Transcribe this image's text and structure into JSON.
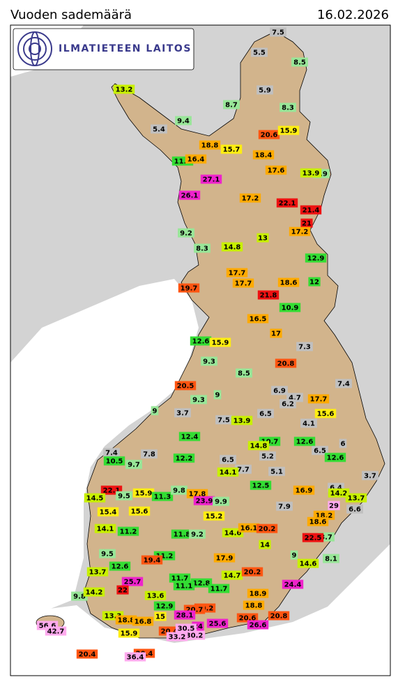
{
  "header": {
    "title": "Vuoden sademäärä",
    "date": "16.02.2026"
  },
  "logo": {
    "text": "ILMATIETEEN LAITOS"
  },
  "stations": [
    {
      "value": 7.5,
      "color": "#c0c0c0"
    },
    {
      "value": 5.5,
      "color": "#c0c0c0"
    },
    {
      "value": 8.5,
      "color": "#98e698"
    },
    {
      "value": 13.2,
      "color": "#c8f000"
    },
    {
      "value": 5.9,
      "color": "#c0c0c0"
    },
    {
      "value": 8.7,
      "color": "#98e698"
    },
    {
      "value": 8.3,
      "color": "#98e698"
    },
    {
      "value": 9.4,
      "color": "#98e698"
    },
    {
      "value": 5.4,
      "color": "#c0c0c0"
    },
    {
      "value": 20.6,
      "color": "#ff5511"
    },
    {
      "value": 15.9,
      "color": "#ffee11"
    },
    {
      "value": 18.8,
      "color": "#ffaa00"
    },
    {
      "value": 15.7,
      "color": "#ffee11"
    },
    {
      "value": 18.4,
      "color": "#ffaa00"
    },
    {
      "value": 11.6,
      "color": "#33dd33"
    },
    {
      "value": 16.4,
      "color": "#ffaa00"
    },
    {
      "value": 17.6,
      "color": "#ffaa00"
    },
    {
      "value": 9.9,
      "color": "#98e698"
    },
    {
      "value": 13.9,
      "color": "#c8f000"
    },
    {
      "value": 27.1,
      "color": "#ee22cc"
    },
    {
      "value": 26.1,
      "color": "#ee22cc"
    },
    {
      "value": 17.2,
      "color": "#ffaa00"
    },
    {
      "value": 22.1,
      "color": "#ee1111"
    },
    {
      "value": 21.4,
      "color": "#ee1111"
    },
    {
      "value": 21,
      "color": "#ee1111"
    },
    {
      "value": 17.2,
      "color": "#ffaa00"
    },
    {
      "value": 9.2,
      "color": "#98e698"
    },
    {
      "value": 8.3,
      "color": "#98e698"
    },
    {
      "value": 14.8,
      "color": "#c8f000"
    },
    {
      "value": 13,
      "color": "#c8f000"
    },
    {
      "value": 12.9,
      "color": "#33dd33"
    },
    {
      "value": 17.7,
      "color": "#ffaa00"
    },
    {
      "value": 17.7,
      "color": "#ffaa00"
    },
    {
      "value": 19.7,
      "color": "#ff5511"
    },
    {
      "value": 18.6,
      "color": "#ffaa00"
    },
    {
      "value": 12,
      "color": "#33dd33"
    },
    {
      "value": 21.8,
      "color": "#ee1111"
    },
    {
      "value": 10.9,
      "color": "#33dd33"
    },
    {
      "value": 16.5,
      "color": "#ffaa00"
    },
    {
      "value": 17,
      "color": "#ffaa00"
    },
    {
      "value": 12.6,
      "color": "#33dd33"
    },
    {
      "value": 15.9,
      "color": "#ffee11"
    },
    {
      "value": 7.3,
      "color": "#c0c0c0"
    },
    {
      "value": 9.3,
      "color": "#98e698"
    },
    {
      "value": 20.8,
      "color": "#ff5511"
    },
    {
      "value": 8.5,
      "color": "#98e698"
    },
    {
      "value": 7.4,
      "color": "#c0c0c0"
    },
    {
      "value": 20.5,
      "color": "#ff5511"
    },
    {
      "value": 6.9,
      "color": "#c0c0c0"
    },
    {
      "value": 4.7,
      "color": "#c0c0c0"
    },
    {
      "value": 6.2,
      "color": "#c0c0c0"
    },
    {
      "value": 9,
      "color": "#98e698"
    },
    {
      "value": 9.3,
      "color": "#98e698"
    },
    {
      "value": 17.7,
      "color": "#ffaa00"
    },
    {
      "value": 9,
      "color": "#98e698"
    },
    {
      "value": 3.7,
      "color": "#c0c0c0"
    },
    {
      "value": 6.5,
      "color": "#c0c0c0"
    },
    {
      "value": 15.6,
      "color": "#ffee11"
    },
    {
      "value": 7.5,
      "color": "#c0c0c0"
    },
    {
      "value": 13.9,
      "color": "#c8f000"
    },
    {
      "value": 4.1,
      "color": "#c0c0c0"
    },
    {
      "value": 12.4,
      "color": "#33dd33"
    },
    {
      "value": 7.4,
      "color": "#c0c0c0"
    },
    {
      "value": 10.7,
      "color": "#33dd33"
    },
    {
      "value": 14.8,
      "color": "#c8f000"
    },
    {
      "value": 12.6,
      "color": "#33dd33"
    },
    {
      "value": 6,
      "color": "#c0c0c0"
    },
    {
      "value": 7.8,
      "color": "#c0c0c0"
    },
    {
      "value": 10.5,
      "color": "#33dd33"
    },
    {
      "value": 9.7,
      "color": "#98e698"
    },
    {
      "value": 12.2,
      "color": "#33dd33"
    },
    {
      "value": 6.5,
      "color": "#c0c0c0"
    },
    {
      "value": 5.2,
      "color": "#c0c0c0"
    },
    {
      "value": 6.5,
      "color": "#c0c0c0"
    },
    {
      "value": 12.6,
      "color": "#33dd33"
    },
    {
      "value": 7.7,
      "color": "#c0c0c0"
    },
    {
      "value": 14.1,
      "color": "#c8f000"
    },
    {
      "value": 5.1,
      "color": "#c0c0c0"
    },
    {
      "value": 3.7,
      "color": "#c0c0c0"
    },
    {
      "value": 12.5,
      "color": "#33dd33"
    },
    {
      "value": 22.1,
      "color": "#ee1111"
    },
    {
      "value": 9.5,
      "color": "#98e698"
    },
    {
      "value": 14.5,
      "color": "#c8f000"
    },
    {
      "value": 15.9,
      "color": "#ffee11"
    },
    {
      "value": 11.3,
      "color": "#33dd33"
    },
    {
      "value": 9.8,
      "color": "#98e698"
    },
    {
      "value": 17.8,
      "color": "#ffaa00"
    },
    {
      "value": 23.9,
      "color": "#ee22cc"
    },
    {
      "value": 9.9,
      "color": "#98e698"
    },
    {
      "value": 16.9,
      "color": "#ffaa00"
    },
    {
      "value": 6.4,
      "color": "#c0c0c0"
    },
    {
      "value": 14.2,
      "color": "#c8f000"
    },
    {
      "value": 13.7,
      "color": "#c8f000"
    },
    {
      "value": 15.4,
      "color": "#ffee11"
    },
    {
      "value": 15.6,
      "color": "#ffee11"
    },
    {
      "value": 7.9,
      "color": "#c0c0c0"
    },
    {
      "value": 29,
      "color": "#ffaaee"
    },
    {
      "value": 6.6,
      "color": "#c0c0c0"
    },
    {
      "value": 15.2,
      "color": "#ffee11"
    },
    {
      "value": 18.2,
      "color": "#ffaa00"
    },
    {
      "value": 18.6,
      "color": "#ffaa00"
    },
    {
      "value": 14.1,
      "color": "#c8f000"
    },
    {
      "value": 11.2,
      "color": "#33dd33"
    },
    {
      "value": 11.8,
      "color": "#33dd33"
    },
    {
      "value": 9.2,
      "color": "#98e698"
    },
    {
      "value": 14.6,
      "color": "#c8f000"
    },
    {
      "value": 16.1,
      "color": "#ffaa00"
    },
    {
      "value": 20.2,
      "color": "#ff5511"
    },
    {
      "value": 8.7,
      "color": "#98e698"
    },
    {
      "value": 22.5,
      "color": "#ee1111"
    },
    {
      "value": 14,
      "color": "#c8f000"
    },
    {
      "value": 9.5,
      "color": "#98e698"
    },
    {
      "value": 9,
      "color": "#98e698"
    },
    {
      "value": 8.1,
      "color": "#98e698"
    },
    {
      "value": 11.2,
      "color": "#33dd33"
    },
    {
      "value": 19.4,
      "color": "#ff5511"
    },
    {
      "value": 17.9,
      "color": "#ffaa00"
    },
    {
      "value": 12.6,
      "color": "#33dd33"
    },
    {
      "value": 14.6,
      "color": "#c8f000"
    },
    {
      "value": 13.7,
      "color": "#c8f000"
    },
    {
      "value": 14.7,
      "color": "#c8f000"
    },
    {
      "value": 20.2,
      "color": "#ff5511"
    },
    {
      "value": 11.7,
      "color": "#33dd33"
    },
    {
      "value": 25.7,
      "color": "#ee22cc"
    },
    {
      "value": 12.8,
      "color": "#33dd33"
    },
    {
      "value": 11.1,
      "color": "#33dd33"
    },
    {
      "value": 11.7,
      "color": "#33dd33"
    },
    {
      "value": 24.4,
      "color": "#ee22cc"
    },
    {
      "value": 9.8,
      "color": "#98e698"
    },
    {
      "value": 14.2,
      "color": "#c8f000"
    },
    {
      "value": 22,
      "color": "#ee1111"
    },
    {
      "value": 13.6,
      "color": "#c8f000"
    },
    {
      "value": 18.9,
      "color": "#ffaa00"
    },
    {
      "value": 12.9,
      "color": "#33dd33"
    },
    {
      "value": 18.8,
      "color": "#ffaa00"
    },
    {
      "value": 20.2,
      "color": "#ff5511"
    },
    {
      "value": 20.7,
      "color": "#ff5511"
    },
    {
      "value": 13.3,
      "color": "#c8f000"
    },
    {
      "value": 28.1,
      "color": "#ee22cc"
    },
    {
      "value": 15,
      "color": "#ffee11"
    },
    {
      "value": 18.8,
      "color": "#ffaa00"
    },
    {
      "value": 16.8,
      "color": "#ffaa00"
    },
    {
      "value": 20.6,
      "color": "#ff5511"
    },
    {
      "value": 20.8,
      "color": "#ff5511"
    },
    {
      "value": 25.6,
      "color": "#ee22cc"
    },
    {
      "value": 26.6,
      "color": "#ee22cc"
    },
    {
      "value": 56.6,
      "color": "#ffaaee"
    },
    {
      "value": 42.7,
      "color": "#ffaaee"
    },
    {
      "value": 24,
      "color": "#ee22cc"
    },
    {
      "value": 15.9,
      "color": "#ffee11"
    },
    {
      "value": 20.4,
      "color": "#ff5511"
    },
    {
      "value": 30.5,
      "color": "#ffaaee"
    },
    {
      "value": 30.2,
      "color": "#ffaaee"
    },
    {
      "value": 33.2,
      "color": "#ffaaee"
    },
    {
      "value": 20.4,
      "color": "#ff5511"
    },
    {
      "value": 20.4,
      "color": "#ff5511"
    },
    {
      "value": 36.4,
      "color": "#ffaaee"
    }
  ]
}
